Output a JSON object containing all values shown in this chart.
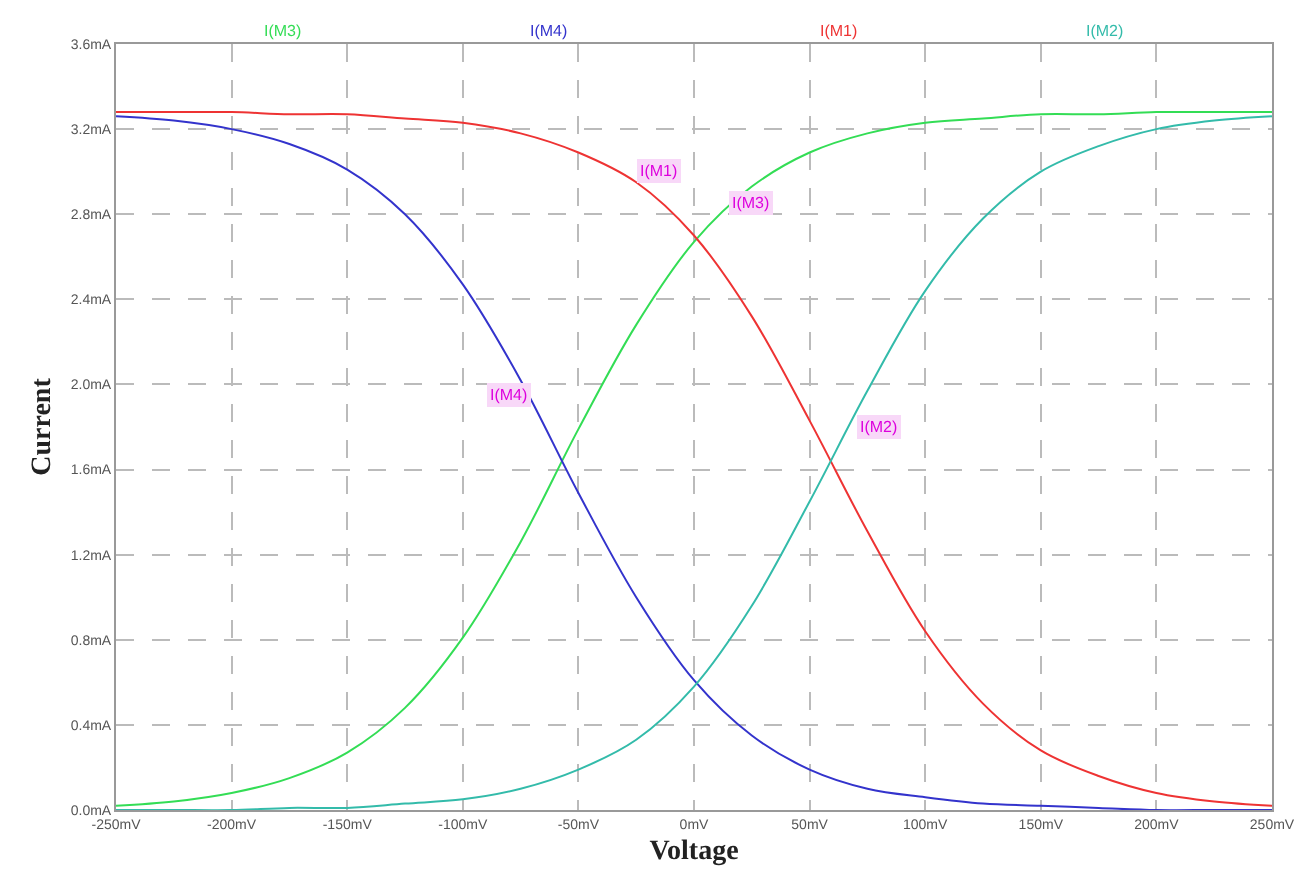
{
  "chart_data": {
    "type": "line",
    "xlabel": "Voltage",
    "ylabel": "Current",
    "x": [
      -250,
      -225,
      -200,
      -175,
      -150,
      -125,
      -100,
      -75,
      -50,
      -25,
      0,
      25,
      50,
      75,
      100,
      125,
      150,
      175,
      200,
      225,
      250
    ],
    "series": [
      {
        "name": "I(M3)",
        "color": "#33dd55",
        "values": [
          0.02,
          0.04,
          0.08,
          0.15,
          0.27,
          0.48,
          0.81,
          1.26,
          1.79,
          2.28,
          2.67,
          2.93,
          3.09,
          3.18,
          3.23,
          3.25,
          3.27,
          3.27,
          3.28,
          3.28,
          3.28
        ]
      },
      {
        "name": "I(M4)",
        "color": "#3333cc",
        "values": [
          3.26,
          3.24,
          3.2,
          3.13,
          3.01,
          2.8,
          2.47,
          2.02,
          1.49,
          1.0,
          0.61,
          0.35,
          0.19,
          0.1,
          0.06,
          0.03,
          0.02,
          0.01,
          0,
          0,
          0
        ]
      },
      {
        "name": "I(M1)",
        "color": "#ee3333",
        "values": [
          3.28,
          3.28,
          3.28,
          3.27,
          3.27,
          3.25,
          3.23,
          3.18,
          3.09,
          2.95,
          2.7,
          2.32,
          1.83,
          1.31,
          0.84,
          0.5,
          0.28,
          0.16,
          0.08,
          0.04,
          0.02
        ]
      },
      {
        "name": "I(M2)",
        "color": "#33bbaa",
        "values": [
          0,
          0,
          0,
          0.01,
          0.01,
          0.03,
          0.05,
          0.1,
          0.19,
          0.33,
          0.58,
          0.96,
          1.45,
          1.97,
          2.44,
          2.78,
          3.0,
          3.12,
          3.2,
          3.24,
          3.26
        ]
      }
    ],
    "annotations": [
      {
        "text": "I(M1)",
        "x": -15,
        "y": 3.0
      },
      {
        "text": "I(M3)",
        "x": 25,
        "y": 2.85
      },
      {
        "text": "I(M4)",
        "x": -80,
        "y": 1.95
      },
      {
        "text": "I(M2)",
        "x": 80,
        "y": 1.8
      }
    ],
    "xlim": [
      -250,
      250
    ],
    "xticks": [
      {
        "value": -250,
        "label": "-250mV"
      },
      {
        "value": -200,
        "label": "-200mV"
      },
      {
        "value": -150,
        "label": "-150mV"
      },
      {
        "value": -100,
        "label": "-100mV"
      },
      {
        "value": -50,
        "label": "-50mV"
      },
      {
        "value": 0,
        "label": "0mV"
      },
      {
        "value": 50,
        "label": "50mV"
      },
      {
        "value": 100,
        "label": "100mV"
      },
      {
        "value": 150,
        "label": "150mV"
      },
      {
        "value": 200,
        "label": "200mV"
      },
      {
        "value": 250,
        "label": "250mV"
      }
    ],
    "ylim": [
      0,
      3.6
    ],
    "yticks": [
      {
        "value": 0,
        "label": "0.0mA"
      },
      {
        "value": 0.4,
        "label": "0.4mA"
      },
      {
        "value": 0.8,
        "label": "0.8mA"
      },
      {
        "value": 1.2,
        "label": "1.2mA"
      },
      {
        "value": 1.6,
        "label": "1.6mA"
      },
      {
        "value": 2.0,
        "label": "2.0mA"
      },
      {
        "value": 2.4,
        "label": "2.4mA"
      },
      {
        "value": 2.8,
        "label": "2.8mA"
      },
      {
        "value": 3.2,
        "label": "3.2mA"
      },
      {
        "value": 3.6,
        "label": "3.6mA"
      }
    ],
    "grid": true,
    "legend": "top",
    "marker": "none",
    "line_style": "solid"
  }
}
